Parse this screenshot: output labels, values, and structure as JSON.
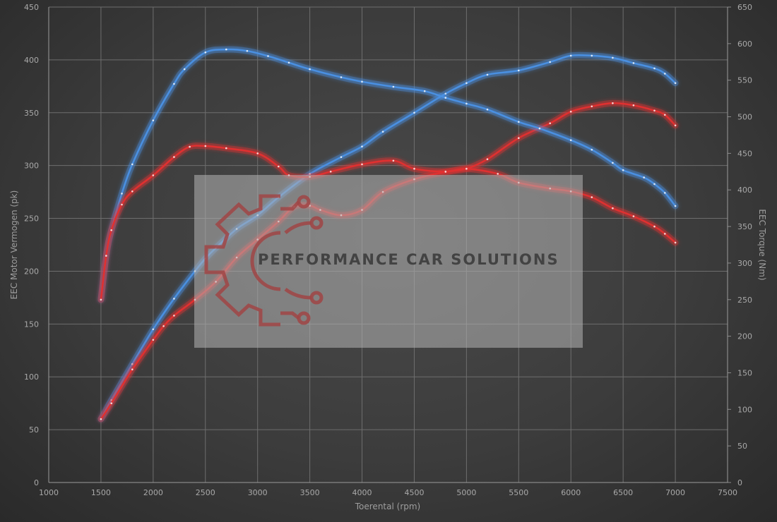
{
  "chart_data": {
    "type": "line",
    "xlabel": "Toerental (rpm)",
    "ylabel_left": "EEC Motor Vermogen (pk)",
    "ylabel_right": "EEC Torque (Nm)",
    "xlim": [
      1000,
      7500
    ],
    "ylim_left": [
      0,
      450
    ],
    "ylim_right": [
      0,
      650
    ],
    "x_ticks": [
      "1000",
      "1500",
      "2000",
      "2500",
      "3000",
      "3500",
      "4000",
      "4500",
      "5000",
      "5500",
      "6000",
      "6500",
      "7000",
      "7500"
    ],
    "y_left_ticks": [
      "0",
      "50",
      "100",
      "150",
      "200",
      "250",
      "300",
      "350",
      "400",
      "450"
    ],
    "y_right_ticks": [
      "0",
      "50",
      "100",
      "150",
      "200",
      "250",
      "300",
      "350",
      "400",
      "450",
      "500",
      "550",
      "600",
      "650"
    ],
    "grid": true,
    "series": [
      {
        "axis": "left",
        "color": "#4a90e2",
        "role": "power-tuned",
        "x": [
          1500,
          1600,
          1800,
          2000,
          2200,
          2400,
          2500,
          2600,
          2800,
          3000,
          3200,
          3500,
          3800,
          4000,
          4200,
          4500,
          4800,
          5000,
          5200,
          5500,
          5800,
          6000,
          6200,
          6400,
          6600,
          6800,
          6900,
          7000
        ],
        "y": [
          60,
          78,
          112,
          145,
          174,
          200,
          212,
          222,
          240,
          253,
          270,
          292,
          308,
          318,
          332,
          350,
          368,
          378,
          386,
          390,
          398,
          404,
          404,
          402,
          397,
          392,
          387,
          378
        ]
      },
      {
        "axis": "left",
        "color": "#e03030",
        "role": "power-stock",
        "x": [
          1500,
          1600,
          1800,
          2000,
          2100,
          2200,
          2400,
          2600,
          2800,
          3000,
          3200,
          3350,
          3500,
          3600,
          3800,
          4000,
          4200,
          4500,
          4800,
          5000,
          5200,
          5500,
          5800,
          6000,
          6200,
          6400,
          6600,
          6800,
          6900,
          7000
        ],
        "y": [
          60,
          75,
          107,
          135,
          148,
          158,
          173,
          190,
          213,
          230,
          247,
          261,
          262,
          258,
          253,
          258,
          275,
          287,
          294,
          297,
          306,
          326,
          340,
          351,
          356,
          359,
          357,
          352,
          348,
          338
        ]
      },
      {
        "axis": "right",
        "color": "#4a90e2",
        "role": "torque-tuned",
        "x": [
          1500,
          1550,
          1600,
          1700,
          1800,
          2000,
          2200,
          2300,
          2500,
          2700,
          2900,
          3100,
          3300,
          3500,
          3800,
          4000,
          4300,
          4600,
          4800,
          5000,
          5200,
          5500,
          5700,
          6000,
          6200,
          6400,
          6500,
          6700,
          6800,
          6900,
          7000
        ],
        "y": [
          250,
          310,
          345,
          395,
          435,
          495,
          545,
          565,
          588,
          592,
          590,
          583,
          574,
          565,
          554,
          548,
          541,
          535,
          526,
          518,
          510,
          493,
          484,
          468,
          455,
          437,
          427,
          417,
          408,
          396,
          378
        ]
      },
      {
        "axis": "right",
        "color": "#e03030",
        "role": "torque-stock",
        "x": [
          1500,
          1550,
          1600,
          1700,
          1800,
          2000,
          2200,
          2350,
          2500,
          2700,
          3000,
          3200,
          3300,
          3500,
          3700,
          4000,
          4300,
          4500,
          4800,
          5000,
          5300,
          5500,
          5800,
          6000,
          6200,
          6400,
          6600,
          6800,
          6900,
          7000
        ],
        "y": [
          250,
          310,
          345,
          380,
          398,
          420,
          445,
          459,
          460,
          457,
          450,
          432,
          420,
          418,
          425,
          435,
          440,
          429,
          425,
          429,
          422,
          410,
          402,
          398,
          390,
          375,
          364,
          350,
          340,
          328
        ]
      }
    ]
  },
  "watermark": {
    "text": "PERFORMANCE CAR SOLUTIONS",
    "logo": "gear-circuit-logo"
  }
}
